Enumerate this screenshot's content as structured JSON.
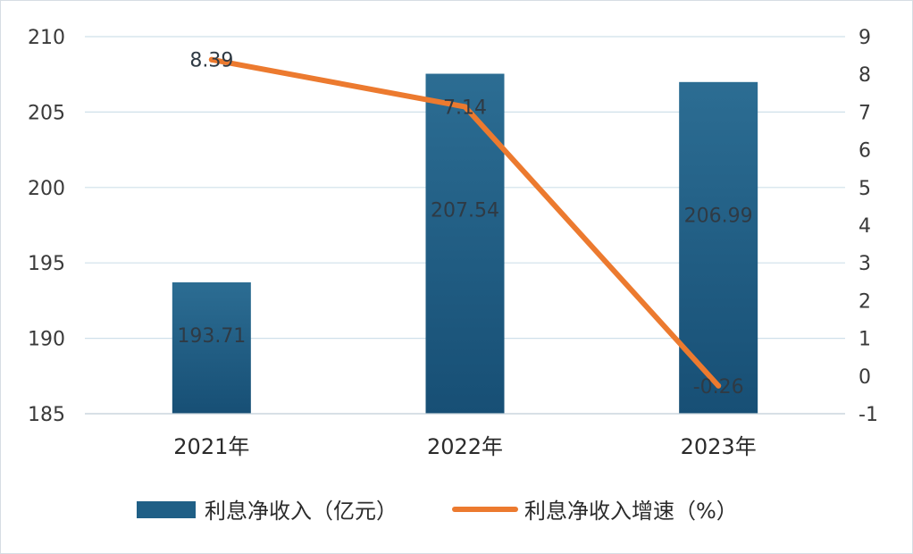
{
  "chart_data": {
    "type": "bar",
    "categories": [
      "2021年",
      "2022年",
      "2023年"
    ],
    "series": [
      {
        "name": "利息净收入（亿元）",
        "type": "bar",
        "axis": "left",
        "values": [
          193.71,
          207.54,
          206.99
        ],
        "labels": [
          "193.71",
          "207.54",
          "206.99"
        ]
      },
      {
        "name": "利息净收入增速（%）",
        "type": "line",
        "axis": "right",
        "values": [
          8.39,
          7.14,
          -0.26
        ],
        "labels": [
          "8.39",
          "7.14",
          "-0.26"
        ]
      }
    ],
    "left_axis": {
      "ylim": [
        185,
        210
      ],
      "ticks": [
        "185",
        "190",
        "195",
        "200",
        "205",
        "210"
      ]
    },
    "right_axis": {
      "ylim": [
        -1,
        9
      ],
      "ticks": [
        "-1",
        "0",
        "1",
        "2",
        "3",
        "4",
        "5",
        "6",
        "7",
        "8",
        "9"
      ]
    },
    "grid": true,
    "legend_position": "bottom",
    "colors": {
      "bar": "#1f5f86",
      "bar_top": "#2c6d93",
      "bar_bottom": "#174f75",
      "line": "#ec7a2f",
      "grid": "#cfe0ea"
    }
  }
}
